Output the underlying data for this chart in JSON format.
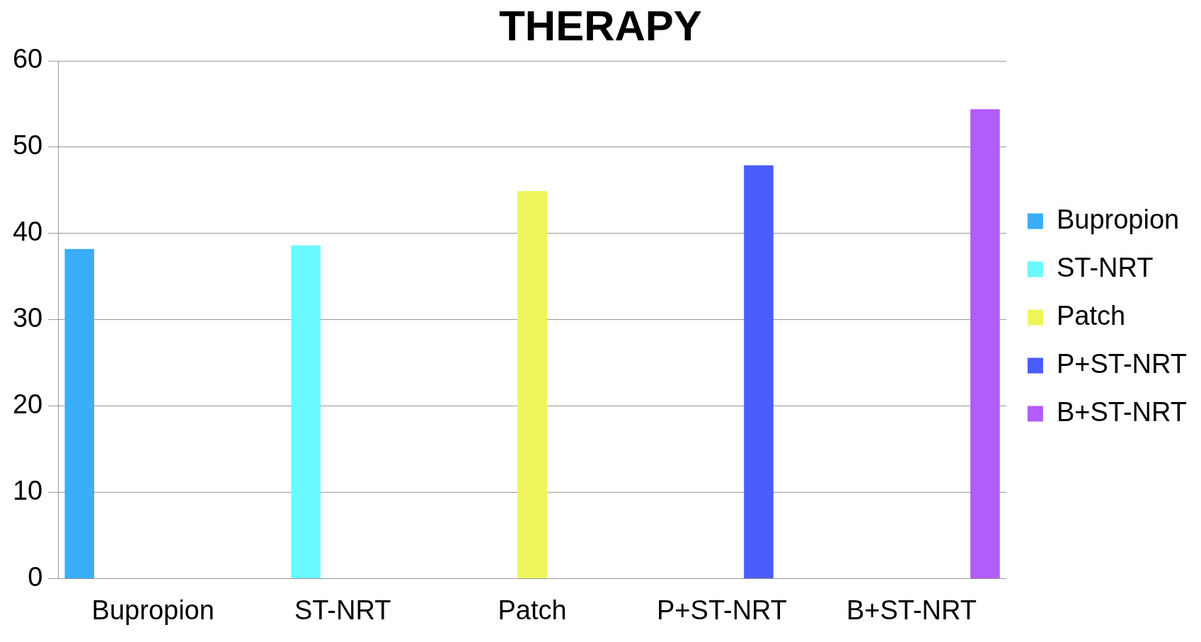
{
  "chart_data": {
    "type": "bar",
    "title": "THERAPY",
    "categories": [
      "Bupropion",
      "ST-NRT",
      "Patch",
      "P+ST-NRT",
      "B+ST-NRT"
    ],
    "series": [
      {
        "name": "Bupropion",
        "color": "#3aaef8",
        "values": [
          38.2,
          null,
          null,
          null,
          null
        ]
      },
      {
        "name": "ST-NRT",
        "color": "#6af8fc",
        "values": [
          null,
          38.6,
          null,
          null,
          null
        ]
      },
      {
        "name": "Patch",
        "color": "#eef55a",
        "values": [
          null,
          null,
          44.9,
          null,
          null
        ]
      },
      {
        "name": "P+ST-NRT",
        "color": "#4a5cfc",
        "values": [
          null,
          null,
          null,
          47.9,
          null
        ]
      },
      {
        "name": "B+ST-NRT",
        "color": "#b25cfb",
        "values": [
          null,
          null,
          null,
          null,
          54.4
        ]
      }
    ],
    "ylim": [
      0,
      60
    ],
    "yticks": [
      0,
      10,
      20,
      30,
      40,
      50,
      60
    ],
    "grid": "y",
    "legend": "right"
  }
}
